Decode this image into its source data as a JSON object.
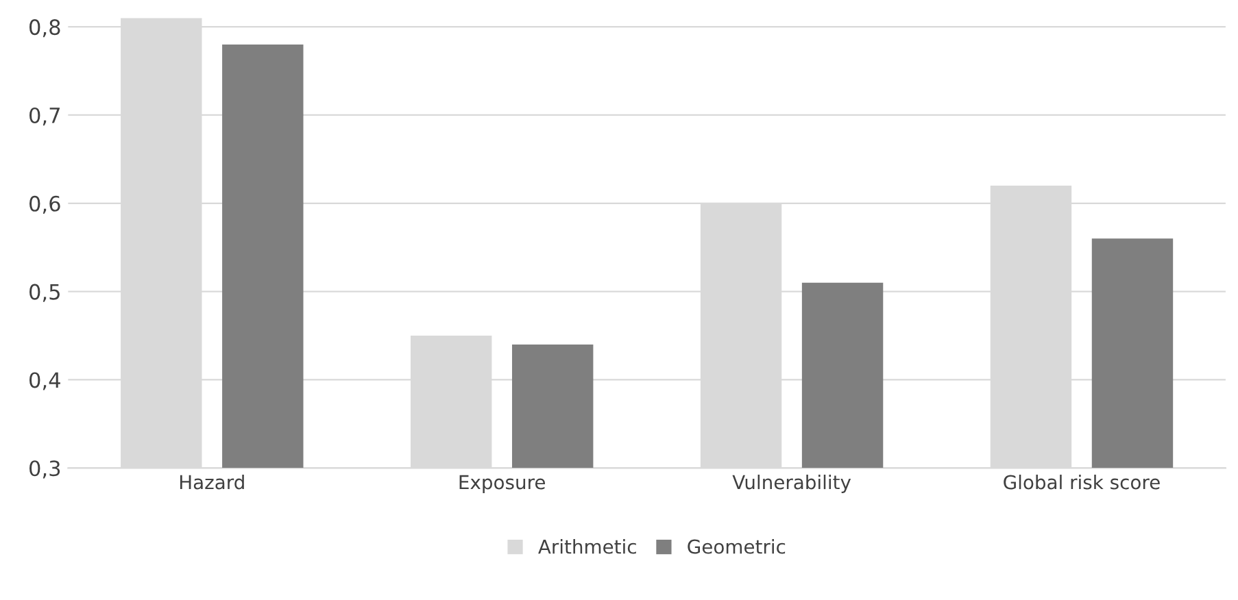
{
  "chart_data": {
    "type": "bar",
    "categories": [
      "Hazard",
      "Exposure",
      "Vulnerability",
      "Global risk score"
    ],
    "series": [
      {
        "name": "Arithmetic",
        "color": "#d9d9d9",
        "values": [
          0.81,
          0.45,
          0.6,
          0.62
        ]
      },
      {
        "name": "Geometric",
        "color": "#7f7f7f",
        "values": [
          0.78,
          0.44,
          0.51,
          0.56
        ]
      }
    ],
    "ylim": [
      0.3,
      0.81
    ],
    "yticks": [
      {
        "value": 0.3,
        "label": "0,3"
      },
      {
        "value": 0.4,
        "label": "0,4"
      },
      {
        "value": 0.5,
        "label": "0,5"
      },
      {
        "value": 0.6,
        "label": "0,6"
      },
      {
        "value": 0.7,
        "label": "0,7"
      },
      {
        "value": 0.8,
        "label": "0,8"
      }
    ],
    "grid": "y",
    "legend": "bottom"
  }
}
